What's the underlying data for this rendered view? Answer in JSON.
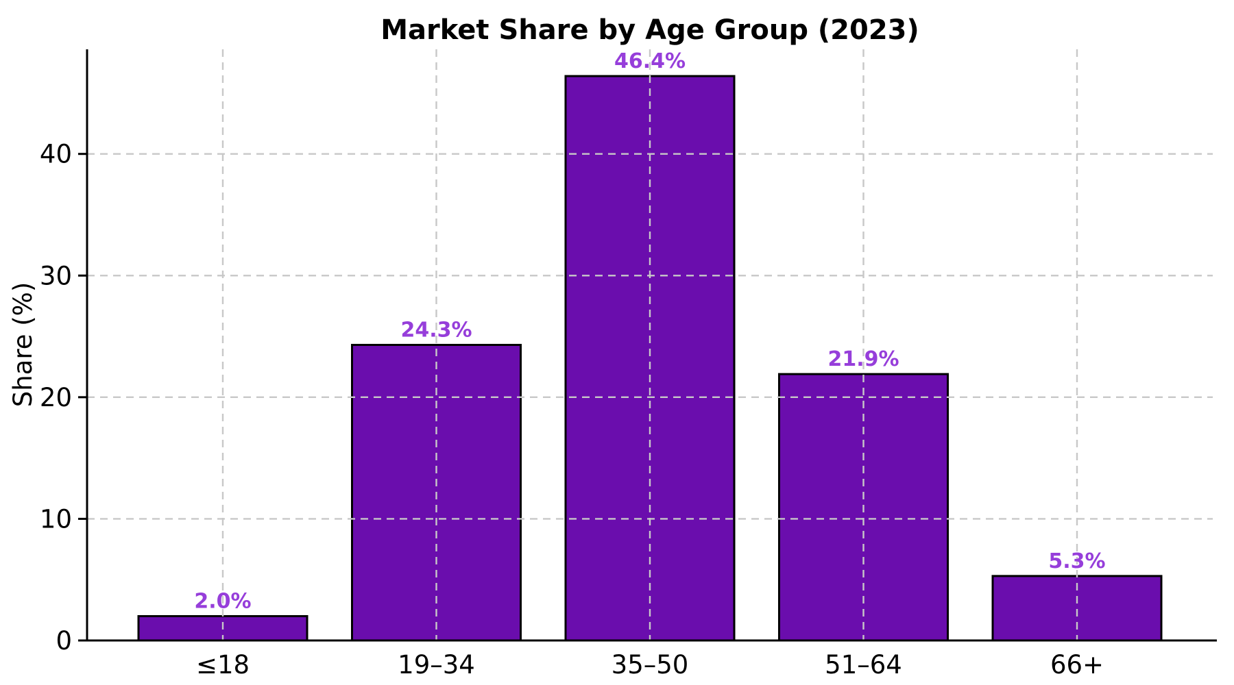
{
  "chart_data": {
    "type": "bar",
    "title": "Market Share by Age Group (2023)",
    "xlabel": "",
    "ylabel": "Share (%)",
    "categories": [
      "≤18",
      "19–34",
      "35–50",
      "51–64",
      "66+"
    ],
    "values": [
      2.0,
      24.3,
      46.4,
      21.9,
      5.3
    ],
    "bar_labels": [
      "2.0%",
      "24.3%",
      "46.4%",
      "21.9%",
      "5.3%"
    ],
    "yticks": [
      0,
      10,
      20,
      30,
      40
    ],
    "ylim": [
      0,
      48.6
    ],
    "grid": "both, dashed, drawn over bars",
    "legend": "none",
    "colors": {
      "bar_fill": "#6a0dad",
      "bar_edge": "#000000",
      "bar_label": "#963eda",
      "grid": "#c8c8c8",
      "axis": "#000000",
      "tick_text": "#000000",
      "title_text": "#000000",
      "background": "#ffffff"
    }
  }
}
